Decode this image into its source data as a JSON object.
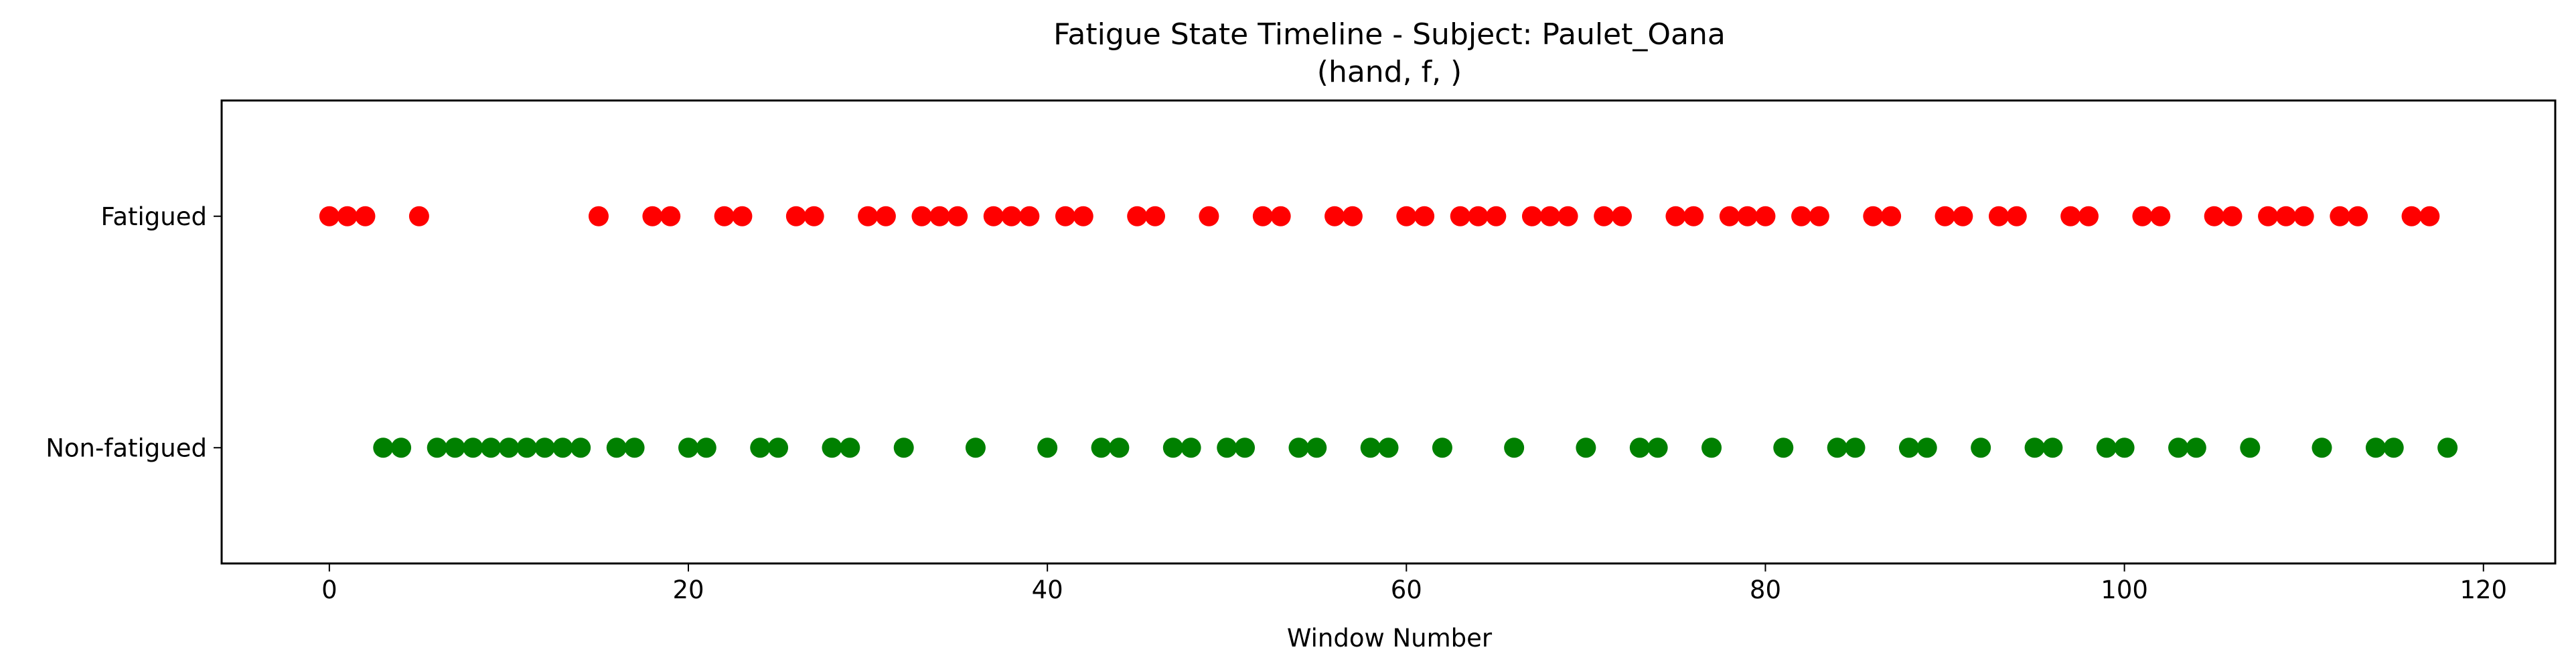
{
  "chart_data": {
    "type": "scatter",
    "title": "Fatigue State Timeline - Subject: Paulet_Oana",
    "subtitle": "(hand, f, )",
    "xlabel": "Window Number",
    "ylabel": "",
    "xlim": [
      -6,
      124
    ],
    "ylim": [
      -0.5,
      1.5
    ],
    "x_ticks": [
      0,
      20,
      40,
      60,
      80,
      100,
      120
    ],
    "y_ticks": [
      {
        "value": 1,
        "label": "Fatigued"
      },
      {
        "value": 0,
        "label": "Non-fatigued"
      }
    ],
    "grid": false,
    "legend": "none",
    "series": [
      {
        "state": "Fatigued",
        "y": 1,
        "color": "#ff0000",
        "x": [
          0,
          1,
          2,
          5,
          15,
          18,
          19,
          22,
          23,
          26,
          27,
          30,
          31,
          33,
          34,
          35,
          37,
          38,
          39,
          41,
          42,
          45,
          46,
          49,
          52,
          53,
          56,
          57,
          60,
          61,
          63,
          64,
          65,
          67,
          68,
          69,
          71,
          72,
          75,
          76,
          78,
          79,
          80,
          82,
          83,
          86,
          87,
          90,
          91,
          93,
          94,
          97,
          98,
          101,
          102,
          105,
          106,
          108,
          109,
          110,
          112,
          113,
          116,
          117
        ]
      },
      {
        "state": "Non-fatigued",
        "y": 0,
        "color": "#008000",
        "x": [
          3,
          4,
          6,
          7,
          8,
          9,
          10,
          11,
          12,
          13,
          14,
          16,
          17,
          20,
          21,
          24,
          25,
          28,
          29,
          32,
          36,
          40,
          43,
          44,
          47,
          48,
          50,
          51,
          54,
          55,
          58,
          59,
          62,
          66,
          70,
          73,
          74,
          77,
          81,
          84,
          85,
          88,
          89,
          92,
          95,
          96,
          99,
          100,
          103,
          104,
          107,
          111,
          114,
          115,
          118
        ]
      }
    ]
  }
}
